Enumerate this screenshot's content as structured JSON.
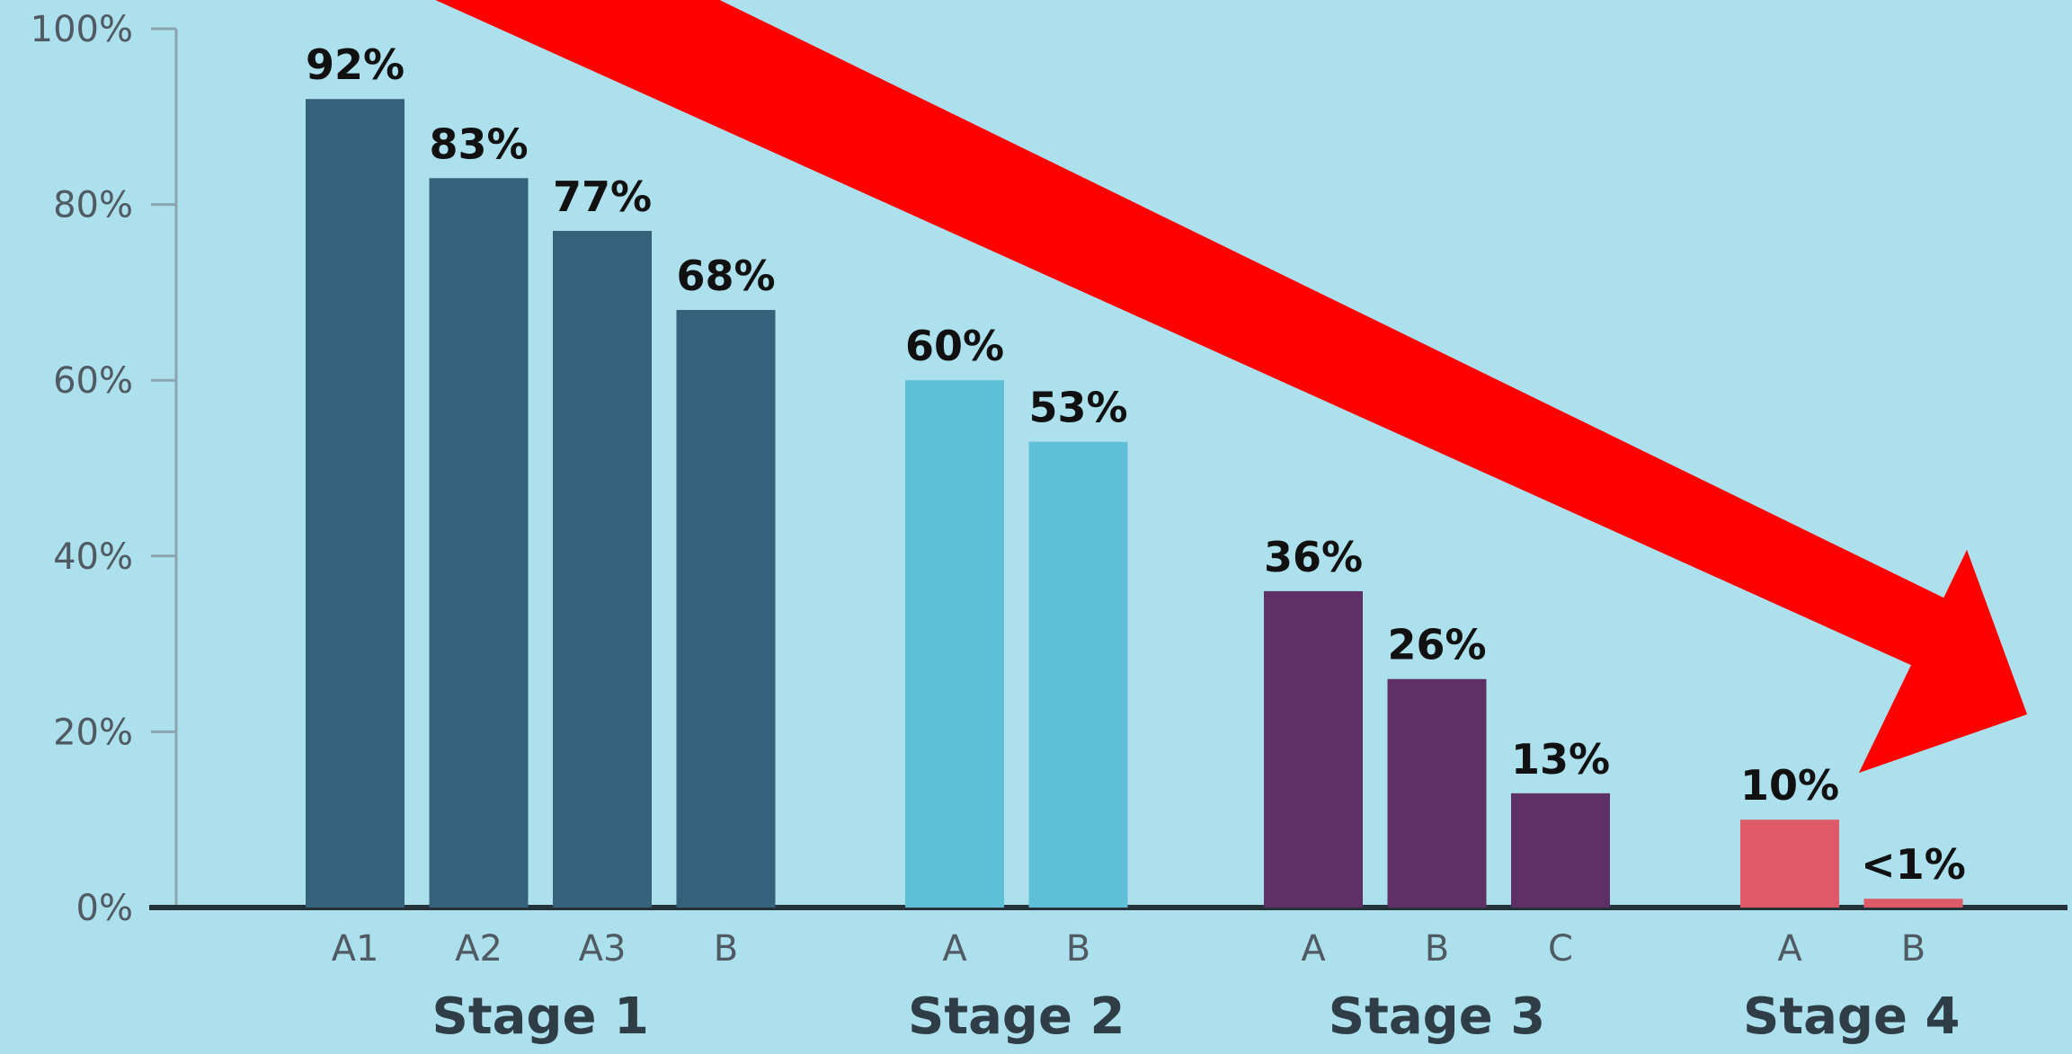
{
  "chart_data": {
    "type": "bar",
    "title": "",
    "xlabel": "",
    "ylabel": "",
    "ylim": [
      0,
      100
    ],
    "y_ticks": [
      "0%",
      "20%",
      "40%",
      "60%",
      "80%",
      "100%"
    ],
    "y_tick_values": [
      0,
      20,
      40,
      60,
      80,
      100
    ],
    "grid": false,
    "groups": [
      {
        "name": "Stage 1",
        "color": "#36617a",
        "categories": [
          "A1",
          "A2",
          "A3",
          "B"
        ],
        "values": [
          92,
          83,
          77,
          68
        ],
        "labels": [
          "92%",
          "83%",
          "77%",
          "68%"
        ]
      },
      {
        "name": "Stage 2",
        "color": "#5ebfd6",
        "categories": [
          "A",
          "B"
        ],
        "values": [
          60,
          53
        ],
        "labels": [
          "60%",
          "53%"
        ]
      },
      {
        "name": "Stage 3",
        "color": "#5e3066",
        "categories": [
          "A",
          "B",
          "C"
        ],
        "values": [
          36,
          26,
          13
        ],
        "labels": [
          "36%",
          "26%",
          "13%"
        ]
      },
      {
        "name": "Stage 4",
        "color": "#de5a68",
        "categories": [
          "A",
          "B"
        ],
        "values": [
          10,
          1
        ],
        "labels": [
          "10%",
          "<1%"
        ]
      }
    ],
    "annotations": [
      {
        "type": "arrow",
        "color": "#ff0000",
        "direction": "downward-right"
      }
    ]
  }
}
